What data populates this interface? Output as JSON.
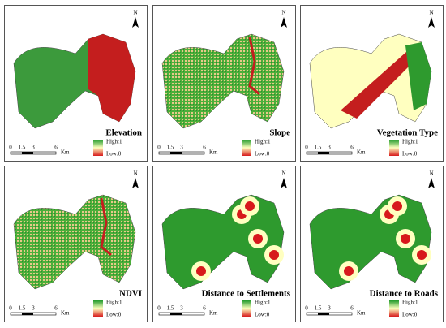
{
  "panels": [
    {
      "title": "Elevation",
      "legend_high": "High:1",
      "legend_low": "Low:0",
      "scale": [
        "0",
        "1.5",
        "3",
        "6"
      ],
      "unit": "Km",
      "north": "N"
    },
    {
      "title": "Slope",
      "legend_high": "High:1",
      "legend_low": "Low:0",
      "scale": [
        "0",
        "1.5",
        "3",
        "6"
      ],
      "unit": "Km",
      "north": "N"
    },
    {
      "title": "Vegetation Type",
      "legend_high": "High:1",
      "legend_low": "Low:0",
      "scale": [
        "0",
        "1.5",
        "3",
        "6"
      ],
      "unit": "Km",
      "north": "N"
    },
    {
      "title": "NDVI",
      "legend_high": "High:1",
      "legend_low": "Low:0",
      "scale": [
        "0",
        "1.5",
        "3",
        "6"
      ],
      "unit": "Km",
      "north": "N"
    },
    {
      "title": "Distance to Settlements",
      "legend_high": "High:1",
      "legend_low": "Low:0",
      "scale": [
        "0",
        "1.5",
        "3",
        "6"
      ],
      "unit": "Km",
      "north": "N"
    },
    {
      "title": "Distance to Roads",
      "legend_high": "High:1",
      "legend_low": "Low:0",
      "scale": [
        "0",
        "1.5",
        "3",
        "6"
      ],
      "unit": "Km",
      "north": "N"
    }
  ]
}
